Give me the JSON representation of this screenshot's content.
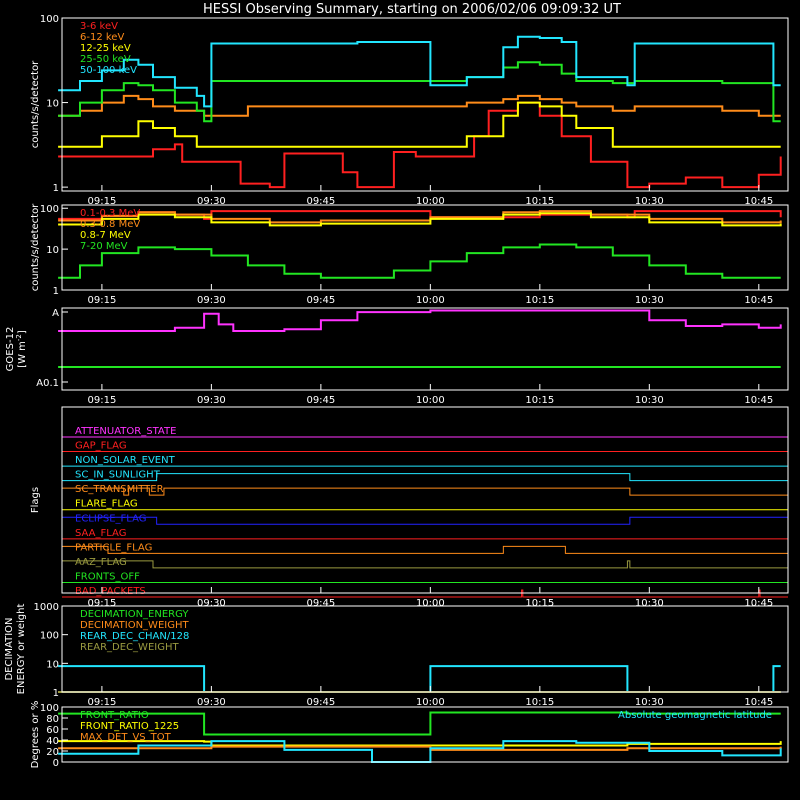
{
  "title": "HESSI Observing Summary, starting on 2006/02/06 09:09:32 UT",
  "colors": {
    "background": "#000000",
    "axes": "#ffffff",
    "red": "#ff2020",
    "orange": "#ff8c1a",
    "yellow": "#ffff00",
    "green": "#22e622",
    "cyan": "#22e6ff",
    "magenta": "#ff33ff",
    "blue": "#2222ff",
    "olive": "#9a9a40"
  },
  "chart_data": [
    {
      "type": "line",
      "ylabel": "counts/s/detector",
      "yscale": "log",
      "ylim": [
        0.9,
        100
      ],
      "ytick_labels": [
        "1",
        "10",
        "100"
      ],
      "xlim": [
        "09:09:32",
        "10:49:00"
      ],
      "xtick_labels": [
        "09:15",
        "09:30",
        "09:45",
        "10:00",
        "10:15",
        "10:30",
        "10:45"
      ],
      "legend": [
        "3-6 keV",
        "6-12 keV",
        "12-25 keV",
        "25-50 keV",
        "50-100 keV"
      ],
      "legend_position": "top-left",
      "series": [
        {
          "name": "3-6 keV",
          "color": "red",
          "x": [
            "09:09",
            "09:20",
            "09:22",
            "09:25",
            "09:26",
            "09:34",
            "09:38",
            "09:40",
            "09:48",
            "09:50",
            "09:55",
            "09:58",
            "10:00",
            "10:06",
            "10:08",
            "10:12",
            "10:15",
            "10:18",
            "10:22",
            "10:27",
            "10:30",
            "10:35",
            "10:40",
            "10:45",
            "10:48"
          ],
          "y": [
            2.3,
            2.3,
            2.8,
            3.2,
            2.0,
            1.1,
            1.0,
            2.5,
            1.5,
            1.0,
            2.6,
            2.3,
            2.3,
            4.0,
            8.0,
            10,
            7.0,
            4.0,
            2.0,
            1.0,
            1.1,
            1.3,
            1.0,
            1.4,
            2.3
          ]
        },
        {
          "name": "6-12 keV",
          "color": "orange",
          "x": [
            "09:09",
            "09:12",
            "09:15",
            "09:18",
            "09:20",
            "09:22",
            "09:25",
            "09:28",
            "09:29",
            "09:35",
            "09:40",
            "09:45",
            "09:50",
            "09:55",
            "10:00",
            "10:05",
            "10:10",
            "10:12",
            "10:15",
            "10:18",
            "10:20",
            "10:25",
            "10:28",
            "10:35",
            "10:40",
            "10:45",
            "10:48"
          ],
          "y": [
            7,
            8,
            10,
            12,
            11,
            9,
            8,
            8,
            7,
            9,
            9,
            9,
            9,
            9,
            9,
            10,
            11,
            12,
            11,
            10,
            9,
            8,
            9,
            9,
            8,
            7,
            7
          ]
        },
        {
          "name": "12-25 keV",
          "color": "yellow",
          "x": [
            "09:09",
            "09:15",
            "09:20",
            "09:22",
            "09:25",
            "09:28",
            "09:30",
            "09:40",
            "09:50",
            "09:55",
            "10:00",
            "10:05",
            "10:10",
            "10:12",
            "10:15",
            "10:18",
            "10:20",
            "10:25",
            "10:28",
            "10:35",
            "10:45",
            "10:48"
          ],
          "y": [
            3,
            4,
            6,
            5,
            4,
            3,
            3,
            3,
            3,
            3,
            3,
            4,
            7,
            10,
            9,
            7,
            5,
            3,
            3,
            3,
            3,
            3
          ]
        },
        {
          "name": "25-50 keV",
          "color": "green",
          "x": [
            "09:09",
            "09:12",
            "09:15",
            "09:18",
            "09:20",
            "09:22",
            "09:25",
            "09:28",
            "09:29",
            "09:30",
            "09:35",
            "09:40",
            "09:45",
            "09:50",
            "09:55",
            "10:00",
            "10:05",
            "10:10",
            "10:12",
            "10:15",
            "10:18",
            "10:20",
            "10:25",
            "10:28",
            "10:30",
            "10:35",
            "10:40",
            "10:45",
            "10:47",
            "10:48"
          ],
          "y": [
            7,
            10,
            14,
            17,
            16,
            14,
            10,
            8,
            6,
            18,
            18,
            18,
            18,
            18,
            18,
            18,
            20,
            26,
            30,
            28,
            22,
            18,
            17,
            18,
            18,
            18,
            17,
            17,
            6,
            6
          ]
        },
        {
          "name": "50-100 keV",
          "color": "cyan",
          "x": [
            "09:09",
            "09:12",
            "09:15",
            "09:18",
            "09:20",
            "09:22",
            "09:25",
            "09:28",
            "09:29",
            "09:30",
            "09:40",
            "09:50",
            "09:59",
            "10:00",
            "10:05",
            "10:10",
            "10:12",
            "10:15",
            "10:18",
            "10:20",
            "10:27",
            "10:28",
            "10:35",
            "10:45",
            "10:47",
            "10:48"
          ],
          "y": [
            14,
            18,
            24,
            32,
            28,
            20,
            15,
            12,
            9,
            50,
            50,
            52,
            52,
            16,
            20,
            45,
            60,
            58,
            52,
            20,
            16,
            50,
            50,
            50,
            16,
            16
          ]
        }
      ]
    },
    {
      "type": "line",
      "ylabel": "counts/s/detector",
      "yscale": "log",
      "ylim": [
        1,
        120
      ],
      "ytick_labels": [
        "1",
        "10",
        "100"
      ],
      "xlim": [
        "09:09:32",
        "10:49:00"
      ],
      "xtick_labels": [
        "09:15",
        "09:30",
        "09:45",
        "10:00",
        "10:15",
        "10:30",
        "10:45"
      ],
      "legend": [
        "0.1-0.3 MeV",
        "0.3-0.8 MeV",
        "0.8-7 MeV",
        "7-20 MeV"
      ],
      "legend_position": "top-left",
      "series": [
        {
          "name": "0.1-0.3 MeV",
          "color": "red",
          "x": [
            "09:09",
            "09:15",
            "09:20",
            "09:25",
            "09:29",
            "09:30",
            "09:45",
            "09:59",
            "10:00",
            "10:15",
            "10:27",
            "10:28",
            "10:45",
            "10:48"
          ],
          "y": [
            55,
            65,
            80,
            70,
            55,
            85,
            85,
            85,
            60,
            70,
            60,
            85,
            85,
            60
          ]
        },
        {
          "name": "0.3-0.8 MeV",
          "color": "orange",
          "x": [
            "09:09",
            "09:15",
            "09:20",
            "09:25",
            "09:30",
            "09:38",
            "09:45",
            "10:00",
            "10:10",
            "10:15",
            "10:22",
            "10:30",
            "10:40",
            "10:48"
          ],
          "y": [
            50,
            65,
            80,
            70,
            55,
            45,
            50,
            60,
            80,
            85,
            70,
            55,
            45,
            50
          ]
        },
        {
          "name": "0.8-7 MeV",
          "color": "yellow",
          "x": [
            "09:09",
            "09:15",
            "09:20",
            "09:25",
            "09:30",
            "09:38",
            "09:45",
            "10:00",
            "10:10",
            "10:15",
            "10:22",
            "10:30",
            "10:40",
            "10:48"
          ],
          "y": [
            40,
            55,
            70,
            60,
            45,
            38,
            42,
            55,
            70,
            75,
            60,
            45,
            38,
            42
          ]
        },
        {
          "name": "7-20 MeV",
          "color": "green",
          "x": [
            "09:09",
            "09:12",
            "09:15",
            "09:20",
            "09:25",
            "09:30",
            "09:35",
            "09:40",
            "09:45",
            "09:50",
            "09:55",
            "10:00",
            "10:05",
            "10:10",
            "10:15",
            "10:20",
            "10:25",
            "10:30",
            "10:35",
            "10:40",
            "10:45",
            "10:48"
          ],
          "y": [
            2,
            4,
            8,
            11,
            10,
            7,
            4,
            2.5,
            2,
            2,
            3,
            5,
            8,
            11,
            13,
            11,
            7,
            4,
            2.5,
            2,
            2,
            2
          ]
        }
      ]
    },
    {
      "type": "line",
      "ylabel": "GOES-12",
      "ylabel_units": "[W m",
      "ylabel_units_sup": "-2",
      "ylabel_units_end": "]",
      "yscale": "log",
      "ytick_labels": [
        "A",
        "A0.1"
      ],
      "xlim": [
        "09:09:32",
        "10:49:00"
      ],
      "xtick_labels": [
        "09:15",
        "09:30",
        "09:45",
        "10:00",
        "10:15",
        "10:30",
        "10:45"
      ],
      "series": [
        {
          "name": "",
          "color": "magenta",
          "x": [
            "09:09",
            "09:20",
            "09:25",
            "09:29",
            "09:31",
            "09:33",
            "09:35",
            "09:40",
            "09:45",
            "09:50",
            "10:00",
            "10:10",
            "10:20",
            "10:27",
            "10:30",
            "10:35",
            "10:40",
            "10:45",
            "10:48"
          ],
          "y": [
            0.72,
            0.72,
            0.76,
            0.93,
            0.8,
            0.72,
            0.72,
            0.74,
            0.85,
            0.95,
            0.97,
            0.97,
            0.97,
            0.97,
            0.85,
            0.78,
            0.8,
            0.76,
            0.8
          ]
        },
        {
          "name": "",
          "color": "green",
          "x": [
            "09:09",
            "10:48"
          ],
          "y": [
            0.28,
            0.28
          ]
        }
      ]
    },
    {
      "type": "line",
      "ylabel": "Flags",
      "xlim": [
        "09:09:32",
        "10:49:00"
      ],
      "xtick_labels": [
        "09:15",
        "09:30",
        "09:45",
        "10:00",
        "10:15",
        "10:30",
        "10:45"
      ],
      "flags": [
        {
          "name": "ATTENUATOR_STATE",
          "color": "magenta",
          "on": []
        },
        {
          "name": "GAP_FLAG",
          "color": "red",
          "on": []
        },
        {
          "name": "NON_SOLAR_EVENT",
          "color": "cyan",
          "on": []
        },
        {
          "name": "SC_IN_SUNLIGHT",
          "color": "cyan",
          "on": [
            [
              "09:22:30",
              "10:27:20"
            ]
          ]
        },
        {
          "name": "SC_TRANSMITTER",
          "color": "orange",
          "on": [
            [
              "09:09:32",
              "09:18:00"
            ],
            [
              "09:18:40",
              "09:21:30"
            ],
            [
              "09:23:30",
              "10:27:20"
            ]
          ]
        },
        {
          "name": "FLARE_FLAG",
          "color": "yellow",
          "on": []
        },
        {
          "name": "ECLIPSE_FLAG",
          "color": "blue",
          "on": [
            [
              "09:09:32",
              "09:22:30"
            ],
            [
              "10:27:20",
              "10:49:00"
            ]
          ]
        },
        {
          "name": "SAA_FLAG",
          "color": "red",
          "on": []
        },
        {
          "name": "PARTICLE_FLAG",
          "color": "orange",
          "on": [
            [
              "09:09:32",
              "09:15:50"
            ],
            [
              "10:10:00",
              "10:18:30"
            ]
          ]
        },
        {
          "name": "AAZ_FLAG",
          "color": "olive",
          "on": [
            [
              "09:09:32",
              "09:22:00"
            ],
            [
              "10:27:00",
              "10:27:20"
            ]
          ]
        },
        {
          "name": "FRONTS_OFF",
          "color": "green",
          "on": []
        },
        {
          "name": "BAD_PACKETS",
          "color": "red",
          "on": [
            [
              "10:12:30",
              "10:12:40"
            ],
            [
              "10:45:00",
              "10:45:10"
            ]
          ]
        }
      ]
    },
    {
      "type": "line",
      "ylabel": "DECIMATION",
      "ylabel2": "ENERGY or weight",
      "yscale": "log",
      "ylim": [
        1,
        1000
      ],
      "ytick_labels": [
        "1",
        "10",
        "100",
        "1000"
      ],
      "xlim": [
        "09:09:32",
        "10:49:00"
      ],
      "xtick_labels": [
        "09:15",
        "09:30",
        "09:45",
        "10:00",
        "10:15",
        "10:30",
        "10:45"
      ],
      "legend": [
        "DECIMATION_ENERGY",
        "DECIMATION_WEIGHT",
        "REAR_DEC_CHAN/128",
        "REAR_DEC_WEIGHT"
      ],
      "legend_position": "top-left",
      "series": [
        {
          "name": "DECIMATION_ENERGY",
          "color": "green",
          "x": [
            "09:09",
            "10:48"
          ],
          "y": [
            1,
            1
          ]
        },
        {
          "name": "DECIMATION_WEIGHT",
          "color": "orange",
          "x": [
            "09:09",
            "10:48"
          ],
          "y": [
            1,
            1
          ]
        },
        {
          "name": "REAR_DEC_CHAN/128",
          "color": "cyan",
          "x": [
            "09:09",
            "09:29",
            "09:29",
            "10:00",
            "10:00",
            "10:27",
            "10:27",
            "10:47",
            "10:47",
            "10:48"
          ],
          "y": [
            8,
            8,
            1,
            1,
            8,
            8,
            1,
            1,
            8,
            8
          ]
        },
        {
          "name": "REAR_DEC_WEIGHT",
          "color": "olive",
          "x": [
            "09:09",
            "10:48"
          ],
          "y": [
            1,
            1
          ]
        }
      ]
    },
    {
      "type": "line",
      "ylabel": "Degrees or %",
      "ylim": [
        0,
        100
      ],
      "ytick_labels": [
        "0",
        "20",
        "40",
        "60",
        "80",
        "100"
      ],
      "xlim": [
        "09:09:32",
        "10:49:00"
      ],
      "legend": [
        "FRONT_RATIO",
        "FRONT_RATIO_1225",
        "MAX_DET_VS_TOT"
      ],
      "legend_position": "top-left",
      "annotation": "Absolute geomagnetic latitude",
      "series": [
        {
          "name": "FRONT_RATIO",
          "color": "green",
          "x": [
            "09:09",
            "09:29",
            "09:29",
            "10:00",
            "10:00",
            "10:27",
            "10:27",
            "10:48"
          ],
          "y": [
            88,
            88,
            50,
            50,
            90,
            90,
            88,
            88
          ]
        },
        {
          "name": "FRONT_RATIO_1225",
          "color": "yellow",
          "x": [
            "09:09",
            "09:29",
            "09:30",
            "10:00",
            "10:27",
            "10:48"
          ],
          "y": [
            38,
            37,
            30,
            30,
            33,
            38
          ]
        },
        {
          "name": "MAX_DET_VS_TOT",
          "color": "orange",
          "x": [
            "09:09",
            "09:30",
            "10:00",
            "10:27",
            "10:48"
          ],
          "y": [
            25,
            28,
            22,
            25,
            28
          ]
        },
        {
          "name": "Absolute geomagnetic latitude",
          "color": "cyan",
          "x": [
            "09:09",
            "09:20",
            "09:30",
            "09:40",
            "09:52",
            "10:00",
            "10:10",
            "10:20",
            "10:30",
            "10:40",
            "10:48"
          ],
          "y": [
            15,
            30,
            38,
            22,
            0,
            25,
            38,
            35,
            20,
            12,
            25
          ]
        }
      ]
    }
  ]
}
